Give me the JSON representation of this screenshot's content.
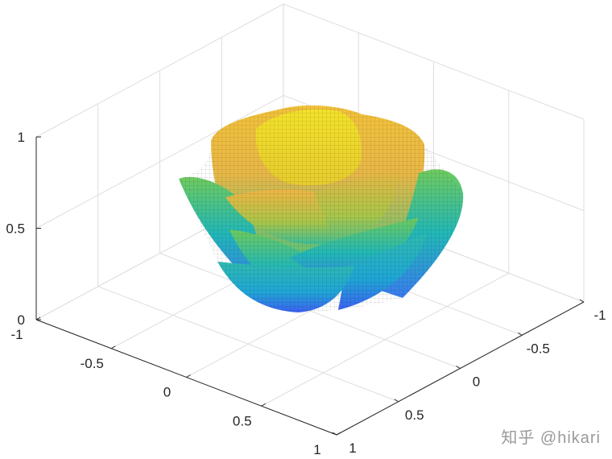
{
  "chart_data": {
    "type": "surface",
    "title": "",
    "xlabel": "",
    "ylabel": "",
    "zlabel": "",
    "xlim": [
      -1,
      1
    ],
    "ylim": [
      -1,
      1
    ],
    "zlim": [
      0,
      1
    ],
    "x_ticks": [
      "-1",
      "-0.5",
      "0",
      "0.5",
      "1"
    ],
    "y_ticks": [
      "1",
      "0.5",
      "0",
      "-0.5",
      "-1"
    ],
    "z_ticks": [
      "0",
      "0.5",
      "1"
    ],
    "x_tick_values": [
      -1,
      -0.5,
      0,
      0.5,
      1
    ],
    "y_tick_values": [
      1,
      0.5,
      0,
      -0.5,
      -1
    ],
    "z_tick_values": [
      0,
      0.5,
      1
    ],
    "grid": true,
    "colormap": "parula",
    "colors": {
      "low": "#3E5FF0",
      "mid_low": "#1FB5C0",
      "mid": "#7CC85A",
      "mid_high": "#F0B840",
      "high": "#F5E520"
    },
    "description_shape": "rose"
  },
  "watermark": "知乎 @hikari"
}
